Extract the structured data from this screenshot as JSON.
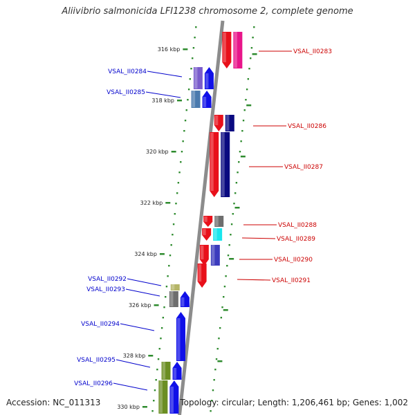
{
  "title": "Aliivibrio salmonicida LFI1238 chromosome 2, complete genome",
  "footer": {
    "accession": "Accession: NC_011313",
    "stats": "Topology: circular; Length: 1,206,461 bp; Genes: 1,002"
  },
  "colors": {
    "backbone": "#8c8c8c",
    "tick": "#2e8b2e",
    "forward_label": "#cc0000",
    "reverse_label": "#0000cc"
  },
  "ticks": [
    "316 kbp",
    "318 kbp",
    "320 kbp",
    "322 kbp",
    "324 kbp",
    "326 kbp",
    "328 kbp",
    "330 kbp"
  ],
  "genes": [
    {
      "id": "VSAL_II0283",
      "strand": "forward",
      "colors": [
        "#e8101a",
        "#e8158a"
      ]
    },
    {
      "id": "VSAL_II0284",
      "strand": "reverse",
      "colors": [
        "#7a5ccc",
        "#1010e8"
      ]
    },
    {
      "id": "VSAL_II0285",
      "strand": "reverse",
      "colors": [
        "#4a7aae",
        "#1010e8"
      ]
    },
    {
      "id": "VSAL_II0286",
      "strand": "forward",
      "colors": [
        "#e8101a",
        "#0a0a80"
      ]
    },
    {
      "id": "VSAL_II0287",
      "strand": "forward",
      "colors": [
        "#e8101a",
        "#0a0a80"
      ]
    },
    {
      "id": "VSAL_II0288",
      "strand": "forward",
      "colors": [
        "#e8101a",
        "#6e6e6e"
      ]
    },
    {
      "id": "VSAL_II0289",
      "strand": "forward",
      "colors": [
        "#e8101a",
        "#19e6ee"
      ]
    },
    {
      "id": "VSAL_II0290",
      "strand": "forward",
      "colors": [
        "#e8101a",
        "#3b3bbd"
      ]
    },
    {
      "id": "VSAL_II0291",
      "strand": "forward",
      "colors": [
        "#e8101a"
      ]
    },
    {
      "id": "VSAL_II0292",
      "strand": "reverse",
      "colors": [
        "#b5b567"
      ]
    },
    {
      "id": "VSAL_II0293",
      "strand": "reverse",
      "colors": [
        "#6e6e6e",
        "#1010e8"
      ]
    },
    {
      "id": "VSAL_II0294",
      "strand": "reverse",
      "colors": [
        "#1010e8"
      ]
    },
    {
      "id": "VSAL_II0295",
      "strand": "reverse",
      "colors": [
        "#6b8e23",
        "#1010e8"
      ]
    },
    {
      "id": "VSAL_II0296",
      "strand": "reverse",
      "colors": [
        "#6b8e23",
        "#1010e8"
      ]
    }
  ]
}
